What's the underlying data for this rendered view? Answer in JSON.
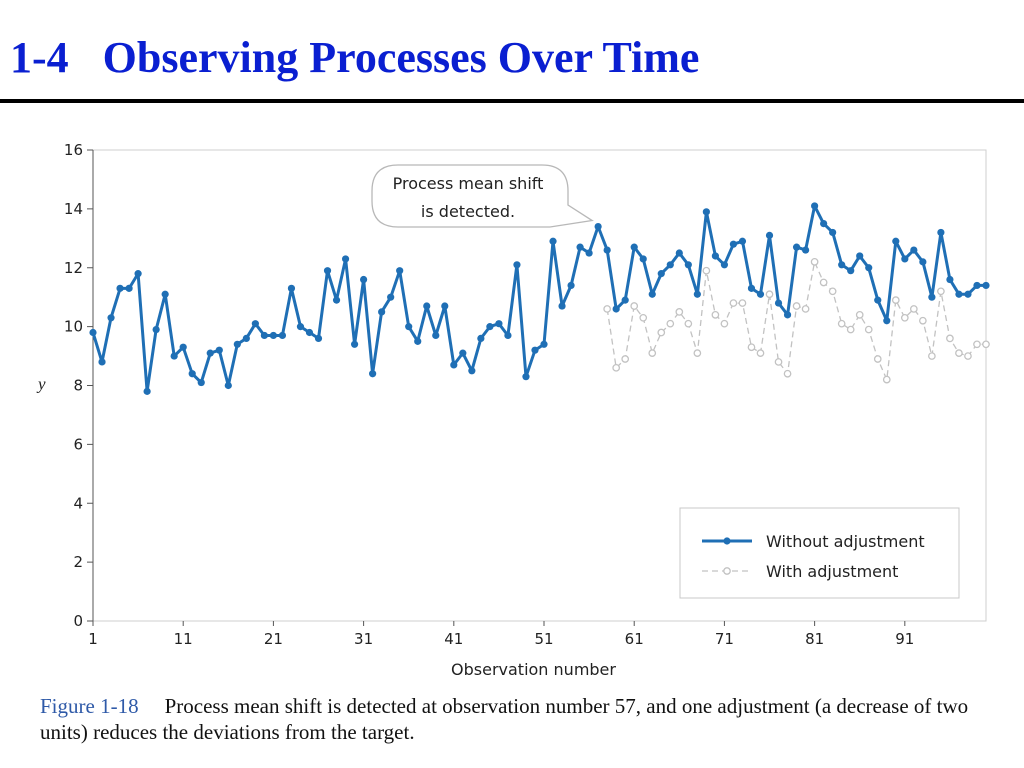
{
  "slide": {
    "number": "1-4",
    "title": "Observing Processes Over Time"
  },
  "caption": {
    "label": "Figure 1-18",
    "text": "Process mean shift is detected at observation number 57, and one adjustment (a decrease of two units) reduces the deviations from the target."
  },
  "colors": {
    "title": "#0a1fd1",
    "series_without": "#1f6fb5",
    "series_with": "#c2c2c2"
  },
  "chart_data": {
    "type": "line",
    "xlabel": "Observation number",
    "ylabel": "y",
    "xlim": [
      1,
      100
    ],
    "ylim": [
      0,
      16
    ],
    "x_ticks": [
      1,
      11,
      21,
      31,
      41,
      51,
      61,
      71,
      81,
      91
    ],
    "y_ticks": [
      0,
      2,
      4,
      6,
      8,
      10,
      12,
      14,
      16
    ],
    "grid": false,
    "legend_position": "bottom-right",
    "annotation": {
      "lines": [
        "Process mean shift",
        "is detected."
      ],
      "x": 57,
      "y": 13.4
    },
    "series": [
      {
        "name": "Without adjustment",
        "style": "solid-filled-markers",
        "x_start": 1,
        "values": [
          9.8,
          8.8,
          10.3,
          11.3,
          11.3,
          11.8,
          7.8,
          9.9,
          11.1,
          9.0,
          9.3,
          8.4,
          8.1,
          9.1,
          9.2,
          8.0,
          9.4,
          9.6,
          10.1,
          9.7,
          9.7,
          9.7,
          11.3,
          10.0,
          9.8,
          9.6,
          11.9,
          10.9,
          12.3,
          9.4,
          11.6,
          8.4,
          10.5,
          11.0,
          11.9,
          10.0,
          9.5,
          10.7,
          9.7,
          10.7,
          8.7,
          9.1,
          8.5,
          9.6,
          10.0,
          10.1,
          9.7,
          12.1,
          8.3,
          9.2,
          9.4,
          12.9,
          10.7,
          11.4,
          12.7,
          12.5,
          13.4,
          12.6,
          10.6,
          10.9,
          12.7,
          12.3,
          11.1,
          11.8,
          12.1,
          12.5,
          12.1,
          11.1,
          13.9,
          12.4,
          12.1,
          12.8,
          12.9,
          11.3,
          11.1,
          13.1,
          10.8,
          10.4,
          12.7,
          12.6,
          14.1,
          13.5,
          13.2,
          12.1,
          11.9,
          12.4,
          12.0,
          10.9,
          10.2,
          12.9,
          12.3,
          12.6,
          12.2,
          11.0,
          13.2,
          11.6,
          11.1,
          11.1,
          11.4,
          11.4
        ]
      },
      {
        "name": "With adjustment",
        "style": "dashed-open-markers",
        "x_start": 58,
        "values": [
          10.6,
          8.6,
          8.9,
          10.7,
          10.3,
          9.1,
          9.8,
          10.1,
          10.5,
          10.1,
          9.1,
          11.9,
          10.4,
          10.1,
          10.8,
          10.8,
          9.3,
          9.1,
          11.1,
          8.8,
          8.4,
          10.7,
          10.6,
          12.2,
          11.5,
          11.2,
          10.1,
          9.9,
          10.4,
          9.9,
          8.9,
          8.2,
          10.9,
          10.3,
          10.6,
          10.2,
          9.0,
          11.2,
          9.6,
          9.1,
          9.0,
          9.4,
          9.4
        ]
      }
    ]
  }
}
